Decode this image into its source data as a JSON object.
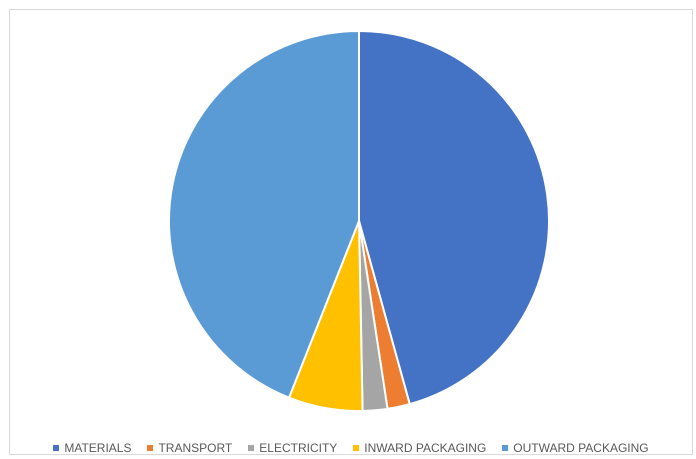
{
  "chart_data": {
    "type": "pie",
    "title": "",
    "categories": [
      "MATERIALS",
      "TRANSPORT",
      "ELECTRICITY",
      "INWARD PACKAGING",
      "OUTWARD PACKAGING"
    ],
    "values": [
      45.7,
      1.9,
      2.1,
      6.3,
      44.0
    ],
    "colors": [
      "#4472C4",
      "#ED7D31",
      "#A5A5A5",
      "#FFC000",
      "#5B9BD5"
    ],
    "start_angle_deg": 0,
    "direction": "clockwise",
    "legend_position": "bottom"
  }
}
